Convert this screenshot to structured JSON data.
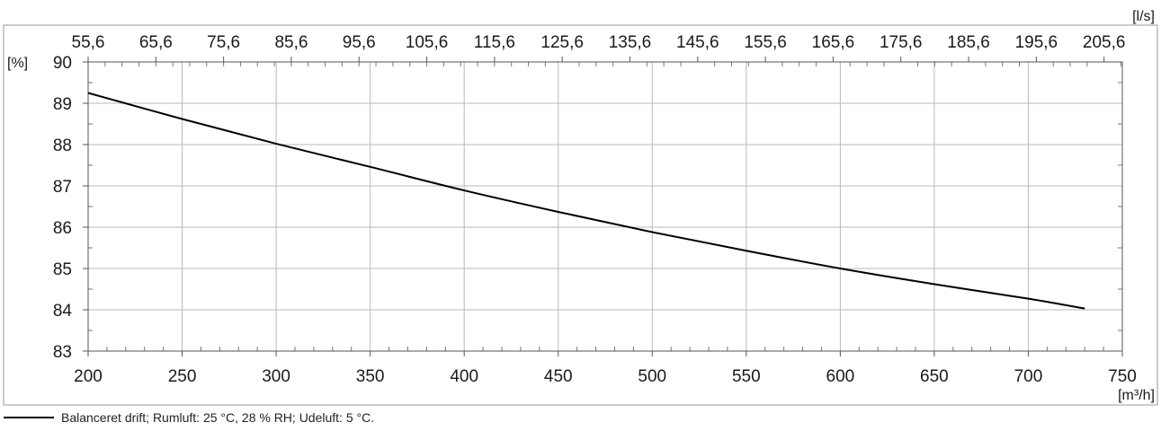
{
  "chart_data": {
    "type": "line",
    "x_bottom": {
      "label": "[m³/h]",
      "ticks": [
        "200",
        "250",
        "300",
        "350",
        "400",
        "450",
        "500",
        "550",
        "600",
        "650",
        "700",
        "750"
      ],
      "range": [
        200,
        750
      ]
    },
    "x_top": {
      "label": "[l/s]",
      "ticks": [
        "55,6",
        "65,6",
        "75,6",
        "85,6",
        "95,6",
        "105,6",
        "115,6",
        "125,6",
        "135,6",
        "145,6",
        "155,6",
        "165,6",
        "175,6",
        "185,6",
        "195,6",
        "205,6"
      ],
      "range": [
        55.6,
        208.3
      ]
    },
    "y": {
      "label": "[%]",
      "ticks": [
        "83",
        "84",
        "85",
        "86",
        "87",
        "88",
        "89",
        "90"
      ],
      "range": [
        83,
        90
      ]
    },
    "grid": true,
    "series": [
      {
        "name": "Balanceret drift; Rumluft: 25 °C, 28 % RH; Udeluft: 5 °C.",
        "color": "#000000",
        "x": [
          200,
          250,
          300,
          350,
          400,
          450,
          500,
          550,
          600,
          650,
          700,
          730
        ],
        "y": [
          89.25,
          88.62,
          88.02,
          87.46,
          86.89,
          86.37,
          85.88,
          85.43,
          85.0,
          84.62,
          84.27,
          84.03
        ]
      }
    ],
    "legend_position": "bottom-left"
  }
}
